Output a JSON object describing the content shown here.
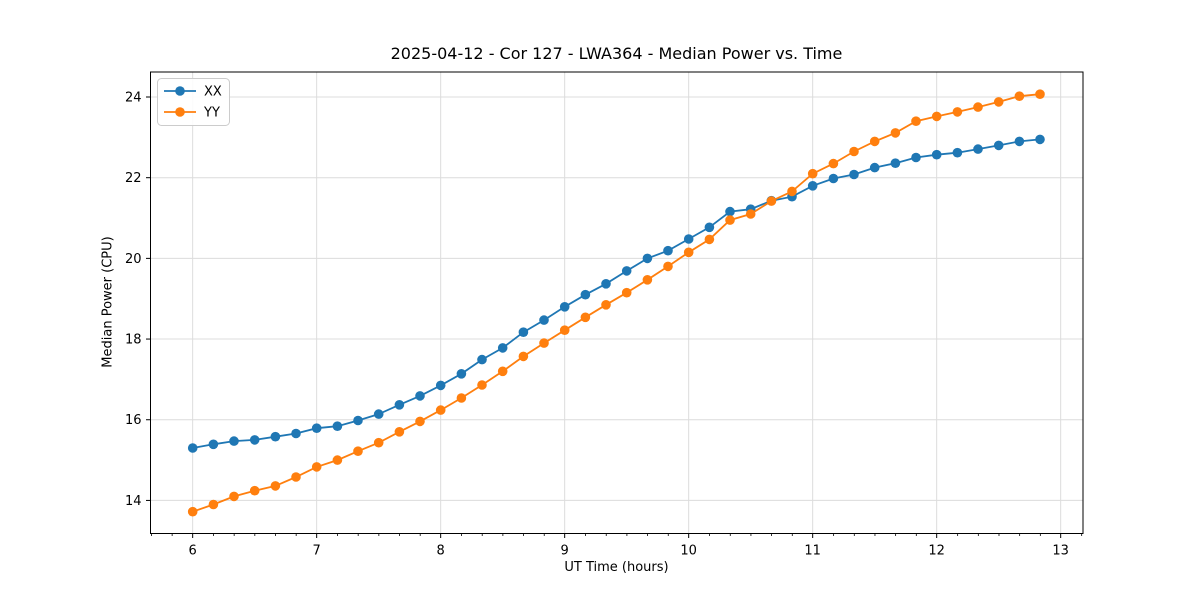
{
  "chart_data": {
    "type": "line",
    "title": "2025-04-12 - Cor 127 - LWA364 - Median Power vs. Time",
    "xlabel": "UT Time (hours)",
    "ylabel": "Median Power (CPU)",
    "xlim": [
      5.66,
      13.18
    ],
    "ylim": [
      13.18,
      24.62
    ],
    "xticks": [
      6,
      7,
      8,
      9,
      10,
      11,
      12,
      13
    ],
    "yticks": [
      14,
      16,
      18,
      20,
      22,
      24
    ],
    "minor_xtick_step": 0.1667,
    "grid": true,
    "grid_color": "#dcdcdc",
    "legend_position": "upper left",
    "background": "#ffffff",
    "x": [
      6.0,
      6.167,
      6.333,
      6.5,
      6.667,
      6.833,
      7.0,
      7.167,
      7.333,
      7.5,
      7.667,
      7.833,
      8.0,
      8.167,
      8.333,
      8.5,
      8.667,
      8.833,
      9.0,
      9.167,
      9.333,
      9.5,
      9.667,
      9.833,
      10.0,
      10.167,
      10.333,
      10.5,
      10.667,
      10.833,
      11.0,
      11.167,
      11.333,
      11.5,
      11.667,
      11.833,
      12.0,
      12.167,
      12.333,
      12.5,
      12.667,
      12.833
    ],
    "series": [
      {
        "name": "XX",
        "color": "#1f77b4",
        "values": [
          15.3,
          15.39,
          15.47,
          15.5,
          15.58,
          15.66,
          15.79,
          15.84,
          15.98,
          16.14,
          16.37,
          16.59,
          16.85,
          17.14,
          17.49,
          17.78,
          18.17,
          18.47,
          18.8,
          19.1,
          19.37,
          19.69,
          20.0,
          20.19,
          20.48,
          20.77,
          21.16,
          21.22,
          21.43,
          21.53,
          21.8,
          21.98,
          22.08,
          22.25,
          22.36,
          22.5,
          22.57,
          22.62,
          22.71,
          22.8,
          22.9,
          22.95
        ]
      },
      {
        "name": "YY",
        "color": "#ff7f0e",
        "values": [
          13.72,
          13.9,
          14.1,
          14.24,
          14.36,
          14.58,
          14.83,
          15.0,
          15.22,
          15.43,
          15.7,
          15.96,
          16.24,
          16.54,
          16.86,
          17.2,
          17.57,
          17.9,
          18.22,
          18.54,
          18.85,
          19.15,
          19.47,
          19.8,
          20.15,
          20.47,
          20.95,
          21.1,
          21.42,
          21.66,
          22.1,
          22.35,
          22.65,
          22.9,
          23.11,
          23.4,
          23.52,
          23.63,
          23.75,
          23.88,
          24.02,
          24.07
        ]
      }
    ]
  }
}
